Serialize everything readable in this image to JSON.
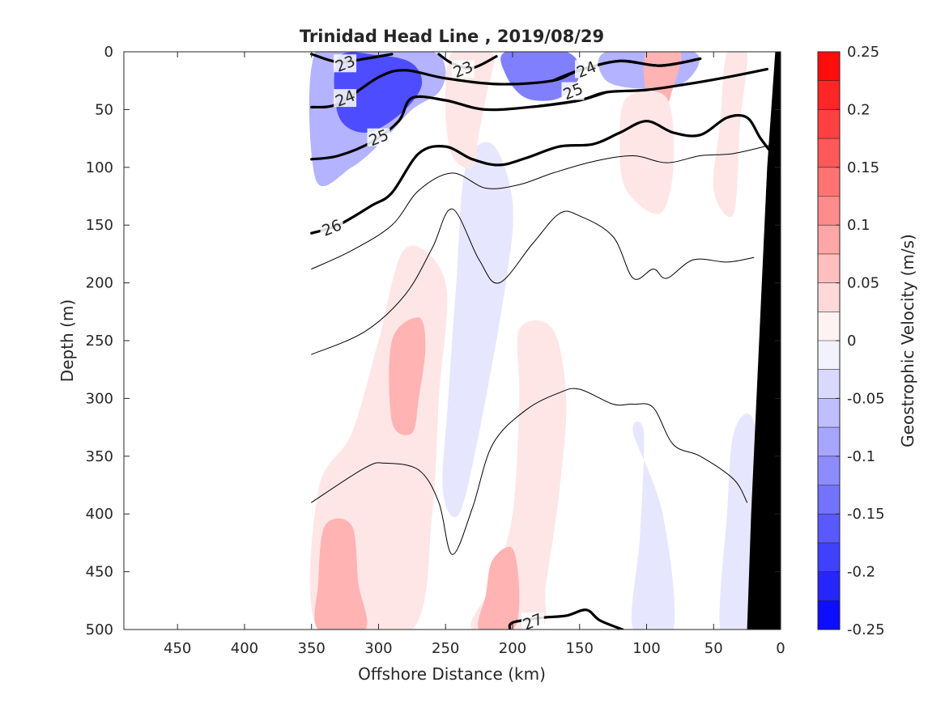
{
  "chart_data": {
    "type": "contour",
    "title": "Trinidad Head Line , 2019/08/29",
    "xlabel": "Offshore Distance (km)",
    "ylabel": "Depth (m)",
    "xlim": [
      0,
      490
    ],
    "x_reversed": true,
    "ylim": [
      0,
      500
    ],
    "y_reversed": true,
    "x_ticks": [
      450,
      400,
      350,
      300,
      250,
      200,
      150,
      100,
      50,
      0
    ],
    "y_ticks": [
      0,
      50,
      100,
      150,
      200,
      250,
      300,
      350,
      400,
      450,
      500
    ],
    "colorbar": {
      "label": "Geostrophic Velocity (m/s)",
      "range": [
        -0.25,
        0.25
      ],
      "step": 0.025,
      "tick_values": [
        0.25,
        0.2,
        0.15,
        0.1,
        0.05,
        0,
        -0.05,
        -0.1,
        -0.15,
        -0.2,
        -0.25
      ],
      "tick_labels": [
        "0.25",
        "0.2",
        "0.15",
        "0.1",
        "0.05",
        "0",
        "-0.05",
        "-0.1",
        "-0.15",
        "-0.2",
        "-0.25"
      ]
    },
    "velocity_patches": [
      {
        "v": -0.075,
        "pts": [
          [
            347,
            0
          ],
          [
            300,
            0
          ],
          [
            260,
            0
          ],
          [
            250,
            15
          ],
          [
            255,
            35
          ],
          [
            275,
            50
          ],
          [
            295,
            75
          ],
          [
            320,
            100
          ],
          [
            347,
            110
          ]
        ]
      },
      {
        "v": -0.175,
        "pts": [
          [
            330,
            5
          ],
          [
            300,
            3
          ],
          [
            275,
            10
          ],
          [
            268,
            30
          ],
          [
            285,
            55
          ],
          [
            310,
            70
          ],
          [
            330,
            55
          ]
        ]
      },
      {
        "v": -0.125,
        "pts": [
          [
            205,
            0
          ],
          [
            160,
            0
          ],
          [
            150,
            20
          ],
          [
            165,
            40
          ],
          [
            190,
            40
          ],
          [
            205,
            20
          ]
        ]
      },
      {
        "v": -0.075,
        "pts": [
          [
            130,
            0
          ],
          [
            65,
            0
          ],
          [
            70,
            25
          ],
          [
            100,
            32
          ],
          [
            130,
            25
          ]
        ]
      },
      {
        "v": -0.025,
        "pts": [
          [
            235,
            100
          ],
          [
            215,
            80
          ],
          [
            200,
            130
          ],
          [
            205,
            200
          ],
          [
            225,
            330
          ],
          [
            240,
            400
          ],
          [
            252,
            380
          ],
          [
            248,
            300
          ],
          [
            242,
            200
          ]
        ]
      },
      {
        "v": -0.025,
        "pts": [
          [
            110,
            330
          ],
          [
            102,
            330
          ],
          [
            105,
            420
          ],
          [
            110,
            500
          ],
          [
            80,
            500
          ],
          [
            88,
            400
          ]
        ]
      },
      {
        "v": -0.025,
        "pts": [
          [
            35,
            330
          ],
          [
            20,
            320
          ],
          [
            10,
            420
          ],
          [
            25,
            500
          ],
          [
            45,
            500
          ],
          [
            40,
            400
          ]
        ]
      },
      {
        "v": 0.025,
        "pts": [
          [
            250,
            200
          ],
          [
            280,
            170
          ],
          [
            300,
            250
          ],
          [
            320,
            330
          ],
          [
            345,
            380
          ],
          [
            345,
            500
          ],
          [
            275,
            500
          ],
          [
            260,
            400
          ],
          [
            255,
            300
          ]
        ]
      },
      {
        "v": 0.075,
        "pts": [
          [
            270,
            230
          ],
          [
            265,
            255
          ],
          [
            270,
            300
          ],
          [
            275,
            330
          ],
          [
            290,
            320
          ],
          [
            290,
            250
          ]
        ]
      },
      {
        "v": 0.075,
        "pts": [
          [
            340,
            410
          ],
          [
            320,
            410
          ],
          [
            315,
            460
          ],
          [
            310,
            500
          ],
          [
            345,
            500
          ],
          [
            345,
            460
          ]
        ]
      },
      {
        "v": 0.025,
        "pts": [
          [
            195,
            240
          ],
          [
            170,
            240
          ],
          [
            160,
            300
          ],
          [
            165,
            380
          ],
          [
            175,
            460
          ],
          [
            180,
            500
          ],
          [
            230,
            500
          ],
          [
            215,
            460
          ],
          [
            200,
            400
          ],
          [
            195,
            300
          ]
        ]
      },
      {
        "v": 0.075,
        "pts": [
          [
            215,
            440
          ],
          [
            200,
            430
          ],
          [
            195,
            470
          ],
          [
            200,
            500
          ],
          [
            225,
            500
          ],
          [
            220,
            470
          ]
        ]
      },
      {
        "v": 0.025,
        "pts": [
          [
            245,
            0
          ],
          [
            215,
            0
          ],
          [
            220,
            40
          ],
          [
            225,
            70
          ],
          [
            230,
            100
          ],
          [
            245,
            90
          ],
          [
            250,
            50
          ]
        ]
      },
      {
        "v": 0.075,
        "pts": [
          [
            100,
            0
          ],
          [
            75,
            0
          ],
          [
            80,
            30
          ],
          [
            90,
            60
          ],
          [
            100,
            40
          ]
        ]
      },
      {
        "v": 0.025,
        "pts": [
          [
            115,
            40
          ],
          [
            85,
            40
          ],
          [
            80,
            100
          ],
          [
            90,
            140
          ],
          [
            115,
            120
          ],
          [
            120,
            80
          ]
        ]
      },
      {
        "v": 0.025,
        "pts": [
          [
            40,
            0
          ],
          [
            25,
            0
          ],
          [
            30,
            60
          ],
          [
            35,
            140
          ],
          [
            50,
            120
          ],
          [
            45,
            60
          ]
        ]
      }
    ],
    "sigma_contours": [
      {
        "level": "23",
        "bold": true,
        "label_at": [
          325,
          10
        ],
        "pts": [
          [
            350,
            2
          ],
          [
            330,
            9
          ],
          [
            310,
            6
          ],
          [
            290,
            2
          ]
        ]
      },
      {
        "level": "23",
        "bold": true,
        "label_at": [
          237,
          15
        ],
        "pts": [
          [
            255,
            2
          ],
          [
            245,
            10
          ],
          [
            230,
            14
          ],
          [
            212,
            4
          ]
        ]
      },
      {
        "level": "24",
        "bold": true,
        "label_at": [
          325,
          40
        ],
        "pts": [
          [
            350,
            48
          ],
          [
            330,
            45
          ],
          [
            300,
            22
          ],
          [
            280,
            16
          ],
          [
            250,
            23
          ],
          [
            210,
            28
          ],
          [
            170,
            25
          ],
          [
            150,
            16
          ],
          [
            120,
            8
          ],
          [
            90,
            12
          ],
          [
            60,
            6
          ]
        ]
      },
      {
        "level": "24",
        "bold": true,
        "label_at": [
          145,
          15
        ],
        "pts": [
          [
            170,
            25
          ],
          [
            150,
            16
          ],
          [
            120,
            8
          ],
          [
            90,
            12
          ],
          [
            60,
            6
          ]
        ]
      },
      {
        "level": "25",
        "bold": true,
        "label_at": [
          300,
          74
        ],
        "pts": [
          [
            350,
            93
          ],
          [
            330,
            90
          ],
          [
            305,
            78
          ],
          [
            285,
            60
          ],
          [
            275,
            40
          ],
          [
            250,
            42
          ],
          [
            220,
            50
          ],
          [
            180,
            47
          ],
          [
            150,
            42
          ],
          [
            130,
            35
          ],
          [
            100,
            33
          ],
          [
            70,
            28
          ],
          [
            40,
            22
          ],
          [
            10,
            15
          ]
        ]
      },
      {
        "level": "25",
        "bold": true,
        "label_at": [
          155,
          34
        ],
        "pts": [
          [
            180,
            47
          ],
          [
            150,
            42
          ],
          [
            130,
            35
          ]
        ]
      },
      {
        "level": "26",
        "bold": true,
        "label_at": [
          335,
          152
        ],
        "pts": [
          [
            350,
            157
          ],
          [
            330,
            150
          ],
          [
            305,
            133
          ],
          [
            290,
            122
          ],
          [
            270,
            88
          ],
          [
            250,
            82
          ],
          [
            230,
            93
          ],
          [
            210,
            98
          ],
          [
            190,
            92
          ],
          [
            165,
            82
          ],
          [
            140,
            80
          ],
          [
            120,
            70
          ],
          [
            100,
            60
          ],
          [
            80,
            70
          ],
          [
            60,
            72
          ],
          [
            40,
            57
          ],
          [
            25,
            57
          ],
          [
            15,
            75
          ],
          [
            5,
            90
          ]
        ]
      },
      {
        "level": "27",
        "bold": true,
        "label_at": [
          185,
          493
        ],
        "pts": [
          [
            202,
            500
          ],
          [
            200,
            494
          ],
          [
            180,
            490
          ],
          [
            160,
            488
          ],
          [
            145,
            483
          ],
          [
            135,
            492
          ],
          [
            118,
            500
          ]
        ]
      },
      {
        "level": "",
        "bold": false,
        "pts": [
          [
            350,
            188
          ],
          [
            320,
            172
          ],
          [
            290,
            150
          ],
          [
            270,
            120
          ],
          [
            245,
            105
          ],
          [
            220,
            118
          ],
          [
            195,
            115
          ],
          [
            170,
            105
          ],
          [
            140,
            95
          ],
          [
            110,
            90
          ],
          [
            85,
            96
          ],
          [
            60,
            90
          ],
          [
            35,
            88
          ],
          [
            5,
            80
          ]
        ]
      },
      {
        "level": "",
        "bold": false,
        "pts": [
          [
            350,
            262
          ],
          [
            310,
            242
          ],
          [
            280,
            210
          ],
          [
            260,
            170
          ],
          [
            245,
            136
          ],
          [
            225,
            180
          ],
          [
            210,
            200
          ],
          [
            185,
            166
          ],
          [
            165,
            140
          ],
          [
            150,
            142
          ],
          [
            125,
            160
          ],
          [
            110,
            196
          ],
          [
            95,
            188
          ],
          [
            85,
            196
          ],
          [
            65,
            180
          ],
          [
            40,
            182
          ],
          [
            20,
            178
          ]
        ]
      },
      {
        "level": "",
        "bold": false,
        "pts": [
          [
            350,
            390
          ],
          [
            310,
            360
          ],
          [
            295,
            356
          ],
          [
            270,
            362
          ],
          [
            255,
            390
          ],
          [
            245,
            435
          ],
          [
            230,
            395
          ],
          [
            215,
            340
          ],
          [
            190,
            310
          ],
          [
            165,
            295
          ],
          [
            150,
            292
          ],
          [
            125,
            305
          ],
          [
            110,
            305
          ],
          [
            95,
            308
          ],
          [
            80,
            340
          ],
          [
            60,
            350
          ],
          [
            35,
            370
          ],
          [
            25,
            390
          ]
        ]
      }
    ],
    "bathymetry": {
      "color": "#000000",
      "pts": [
        [
          25,
          500
        ],
        [
          0,
          500
        ],
        [
          0,
          0
        ],
        [
          4,
          0
        ],
        [
          10,
          100
        ],
        [
          16,
          250
        ],
        [
          22,
          400
        ],
        [
          25,
          500
        ]
      ]
    }
  }
}
